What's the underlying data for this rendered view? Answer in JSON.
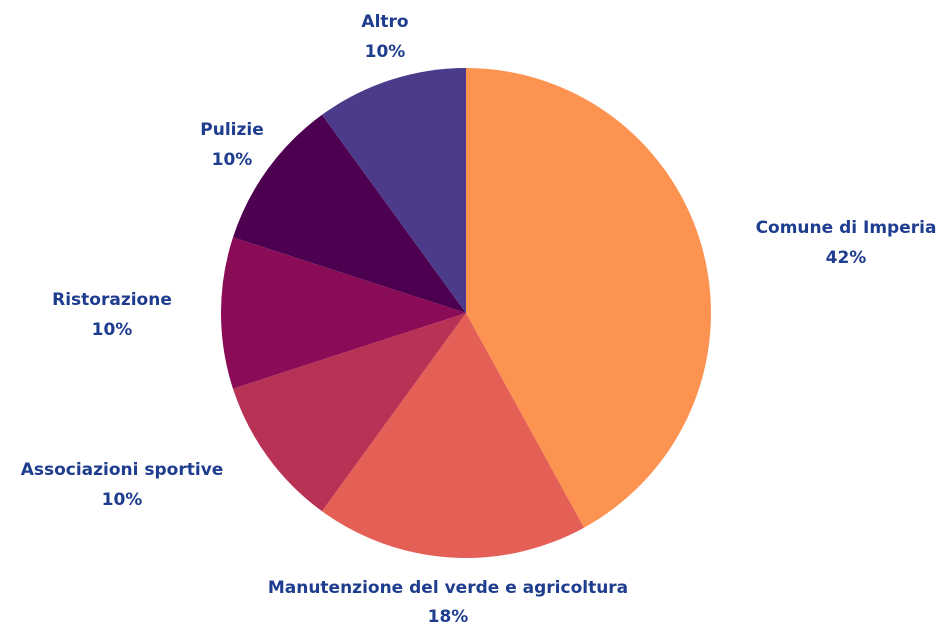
{
  "chart_data": {
    "type": "pie",
    "categories": [
      "Comune di Imperia",
      "Manutenzione del verde e agricoltura",
      "Associazioni sportive",
      "Ristorazione",
      "Pulizie",
      "Altro"
    ],
    "values": [
      42,
      18,
      10,
      10,
      10,
      10
    ],
    "value_labels": [
      "42%",
      "18%",
      "10%",
      "10%",
      "10%",
      "10%"
    ],
    "colors": [
      "#fd9350",
      "#e45f56",
      "#b83255",
      "#8a0c56",
      "#4d0050",
      "#4b3b8a"
    ]
  }
}
